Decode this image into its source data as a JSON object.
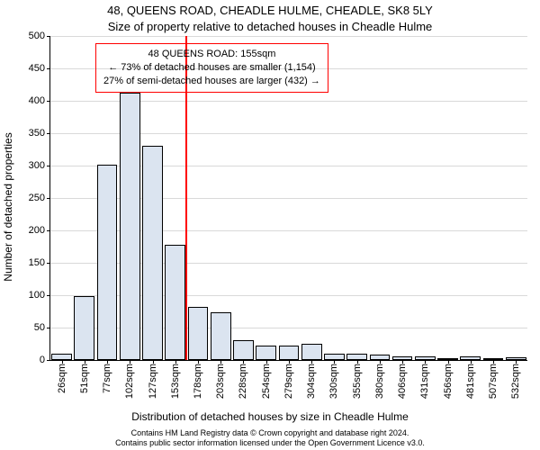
{
  "title": "48, QUEENS ROAD, CHEADLE HULME, CHEADLE, SK8 5LY",
  "subtitle": "Size of property relative to detached houses in Cheadle Hulme",
  "y_axis_label": "Number of detached properties",
  "x_axis_label": "Distribution of detached houses by size in Cheadle Hulme",
  "footer_line1": "Contains HM Land Registry data © Crown copyright and database right 2024.",
  "footer_line2": "Contains public sector information licensed under the Open Government Licence v3.0.",
  "chart": {
    "type": "histogram",
    "ylim": [
      0,
      500
    ],
    "ytick_step": 50,
    "grid_color": "#d9d9d9",
    "bar_fill": "#dbe4f0",
    "bar_border": "#000000",
    "background": "#ffffff",
    "marker_x_category_index": 5,
    "marker_color": "#ff0000",
    "marker_width": 2,
    "annotation_border": "#ff0000",
    "categories": [
      "26sqm",
      "51sqm",
      "77sqm",
      "102sqm",
      "127sqm",
      "153sqm",
      "178sqm",
      "203sqm",
      "228sqm",
      "254sqm",
      "279sqm",
      "304sqm",
      "330sqm",
      "355sqm",
      "380sqm",
      "406sqm",
      "431sqm",
      "456sqm",
      "481sqm",
      "507sqm",
      "532sqm"
    ],
    "values": [
      10,
      98,
      302,
      412,
      330,
      178,
      82,
      73,
      30,
      22,
      22,
      25,
      10,
      10,
      8,
      6,
      6,
      2,
      6,
      2,
      4
    ]
  },
  "annotation": {
    "line1": "48 QUEENS ROAD: 155sqm",
    "line2": "← 73% of detached houses are smaller (1,154)",
    "line3": "27% of semi-detached houses are larger (432) →"
  }
}
